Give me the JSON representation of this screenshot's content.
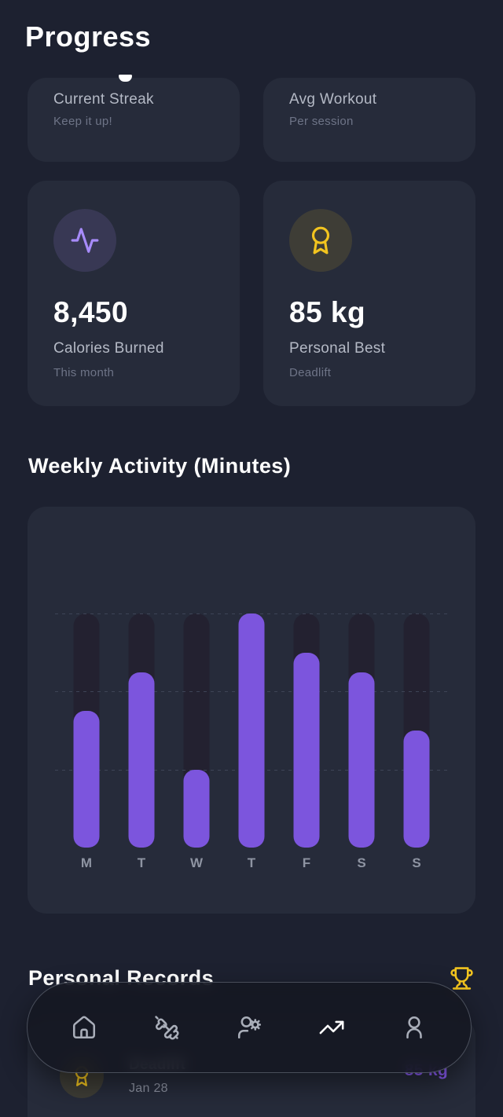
{
  "app": {
    "title": "Progress"
  },
  "colors": {
    "page_bg": "#1d2130",
    "card_bg": "#262b3a",
    "accent_purple": "#7c55dd",
    "accent_purple_light": "#a78bfa",
    "accent_gold": "#f2c41f",
    "text_primary": "#ffffff",
    "text_secondary": "#b4b9c5",
    "text_muted": "#6e7487"
  },
  "stats": {
    "partial_cards": [
      {
        "label": "Current Streak",
        "sublabel": "Keep it up!"
      },
      {
        "label": "Avg Workout",
        "sublabel": "Per session"
      }
    ],
    "stat_cards": [
      {
        "icon": "activity-icon",
        "value": "8,450",
        "label": "Calories Burned",
        "sublabel": "This month"
      },
      {
        "icon": "award-icon",
        "value": "85 kg",
        "label": "Personal Best",
        "sublabel": "Deadlift"
      }
    ]
  },
  "weekly": {
    "title": "Weekly Activity (Minutes)"
  },
  "chart_data": {
    "type": "bar",
    "title": "Weekly Activity (Minutes)",
    "categories": [
      "M",
      "T",
      "W",
      "T",
      "F",
      "S",
      "S"
    ],
    "values": [
      35,
      45,
      20,
      60,
      50,
      45,
      30
    ],
    "unit": "minutes",
    "ylim": [
      0,
      60
    ],
    "gridlines": [
      20,
      40,
      60
    ],
    "grid_style": "dashed",
    "legend": false,
    "bar_color": "#7c55dd",
    "track_color": "#232130"
  },
  "records": {
    "title": "Personal Records",
    "items": [
      {
        "icon": "award-icon",
        "name": "Deadlift",
        "date": "Jan 28",
        "value": "85 kg"
      }
    ]
  },
  "nav": {
    "active_index": 3,
    "items": [
      {
        "name": "home"
      },
      {
        "name": "workouts"
      },
      {
        "name": "community"
      },
      {
        "name": "progress"
      },
      {
        "name": "profile"
      }
    ]
  }
}
